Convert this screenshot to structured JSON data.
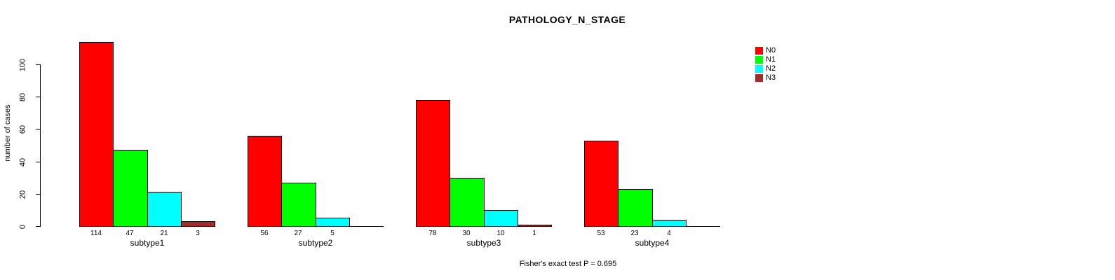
{
  "chart_data": {
    "type": "bar",
    "title": "PATHOLOGY_N_STAGE",
    "ylabel": "number of cases",
    "xlabel": "",
    "categories": [
      "subtype1",
      "subtype2",
      "subtype3",
      "subtype4"
    ],
    "series": [
      {
        "name": "N0",
        "color": "#ff0000",
        "values": [
          114,
          56,
          78,
          53
        ]
      },
      {
        "name": "N1",
        "color": "#00ff00",
        "values": [
          47,
          27,
          30,
          23
        ]
      },
      {
        "name": "N2",
        "color": "#00ffff",
        "values": [
          21,
          5,
          10,
          4
        ]
      },
      {
        "name": "N3",
        "color": "#a52a2a",
        "values": [
          3,
          0,
          1,
          0
        ]
      }
    ],
    "bar_value_labels": {
      "subtype1": [
        "114",
        "47",
        "21",
        "3"
      ],
      "subtype2": [
        "56",
        "27",
        "5",
        ""
      ],
      "subtype3": [
        "78",
        "30",
        "10",
        "1"
      ],
      "subtype4": [
        "53",
        "23",
        "4",
        ""
      ]
    },
    "yticks": [
      0,
      20,
      40,
      60,
      80,
      100
    ],
    "ylim": [
      0,
      117
    ],
    "grid": false,
    "legend_position": "right",
    "annotation": "Fisher's exact test P = 0.695",
    "axis_color": "#000000",
    "background_color": "#ffffff"
  }
}
